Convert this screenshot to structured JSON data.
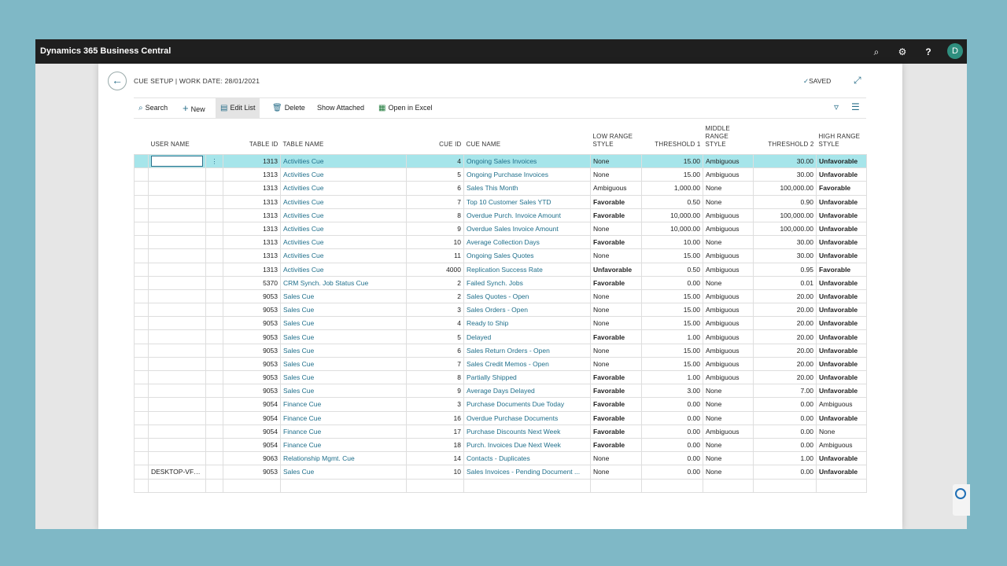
{
  "topbar": {
    "brand": "Dynamics 365 Business Central",
    "avatar_letter": "D"
  },
  "page": {
    "breadcrumb": "CUE SETUP | WORK DATE: 28/01/2021",
    "saved_label": "SAVED"
  },
  "actions": {
    "search": "Search",
    "new": "New",
    "edit_list": "Edit List",
    "delete": "Delete",
    "show_attached": "Show Attached",
    "open_excel": "Open in Excel"
  },
  "columns": {
    "user_name": "USER NAME",
    "table_id": "TABLE ID",
    "table_name": "TABLE NAME",
    "cue_id": "CUE ID",
    "cue_name": "CUE NAME",
    "low_style": "LOW RANGE STYLE",
    "threshold1": "THRESHOLD 1",
    "middle_style": "MIDDLE RANGE STYLE",
    "threshold2": "THRESHOLD 2",
    "high_style": "HIGH RANGE STYLE"
  },
  "rows": [
    {
      "user": "",
      "table_id": "1313",
      "table_name": "Activities Cue",
      "cue_id": "4",
      "cue_name": "Ongoing Sales Invoices",
      "low": "None",
      "t1": "15.00",
      "mid": "Ambiguous",
      "t2": "30.00",
      "high": "Unfavorable"
    },
    {
      "user": "",
      "table_id": "1313",
      "table_name": "Activities Cue",
      "cue_id": "5",
      "cue_name": "Ongoing Purchase Invoices",
      "low": "None",
      "t1": "15.00",
      "mid": "Ambiguous",
      "t2": "30.00",
      "high": "Unfavorable"
    },
    {
      "user": "",
      "table_id": "1313",
      "table_name": "Activities Cue",
      "cue_id": "6",
      "cue_name": "Sales This Month",
      "low": "Ambiguous",
      "t1": "1,000.00",
      "mid": "None",
      "t2": "100,000.00",
      "high": "Favorable"
    },
    {
      "user": "",
      "table_id": "1313",
      "table_name": "Activities Cue",
      "cue_id": "7",
      "cue_name": "Top 10 Customer Sales YTD",
      "low": "Favorable",
      "t1": "0.50",
      "mid": "None",
      "t2": "0.90",
      "high": "Unfavorable"
    },
    {
      "user": "",
      "table_id": "1313",
      "table_name": "Activities Cue",
      "cue_id": "8",
      "cue_name": "Overdue Purch. Invoice Amount",
      "low": "Favorable",
      "t1": "10,000.00",
      "mid": "Ambiguous",
      "t2": "100,000.00",
      "high": "Unfavorable"
    },
    {
      "user": "",
      "table_id": "1313",
      "table_name": "Activities Cue",
      "cue_id": "9",
      "cue_name": "Overdue Sales Invoice Amount",
      "low": "None",
      "t1": "10,000.00",
      "mid": "Ambiguous",
      "t2": "100,000.00",
      "high": "Unfavorable"
    },
    {
      "user": "",
      "table_id": "1313",
      "table_name": "Activities Cue",
      "cue_id": "10",
      "cue_name": "Average Collection Days",
      "low": "Favorable",
      "t1": "10.00",
      "mid": "None",
      "t2": "30.00",
      "high": "Unfavorable"
    },
    {
      "user": "",
      "table_id": "1313",
      "table_name": "Activities Cue",
      "cue_id": "11",
      "cue_name": "Ongoing Sales Quotes",
      "low": "None",
      "t1": "15.00",
      "mid": "Ambiguous",
      "t2": "30.00",
      "high": "Unfavorable"
    },
    {
      "user": "",
      "table_id": "1313",
      "table_name": "Activities Cue",
      "cue_id": "4000",
      "cue_name": "Replication Success Rate",
      "low": "Unfavorable",
      "t1": "0.50",
      "mid": "Ambiguous",
      "t2": "0.95",
      "high": "Favorable"
    },
    {
      "user": "",
      "table_id": "5370",
      "table_name": "CRM Synch. Job Status Cue",
      "cue_id": "2",
      "cue_name": "Failed Synch. Jobs",
      "low": "Favorable",
      "t1": "0.00",
      "mid": "None",
      "t2": "0.01",
      "high": "Unfavorable"
    },
    {
      "user": "",
      "table_id": "9053",
      "table_name": "Sales Cue",
      "cue_id": "2",
      "cue_name": "Sales Quotes - Open",
      "low": "None",
      "t1": "15.00",
      "mid": "Ambiguous",
      "t2": "20.00",
      "high": "Unfavorable"
    },
    {
      "user": "",
      "table_id": "9053",
      "table_name": "Sales Cue",
      "cue_id": "3",
      "cue_name": "Sales Orders - Open",
      "low": "None",
      "t1": "15.00",
      "mid": "Ambiguous",
      "t2": "20.00",
      "high": "Unfavorable"
    },
    {
      "user": "",
      "table_id": "9053",
      "table_name": "Sales Cue",
      "cue_id": "4",
      "cue_name": "Ready to Ship",
      "low": "None",
      "t1": "15.00",
      "mid": "Ambiguous",
      "t2": "20.00",
      "high": "Unfavorable"
    },
    {
      "user": "",
      "table_id": "9053",
      "table_name": "Sales Cue",
      "cue_id": "5",
      "cue_name": "Delayed",
      "low": "Favorable",
      "t1": "1.00",
      "mid": "Ambiguous",
      "t2": "20.00",
      "high": "Unfavorable"
    },
    {
      "user": "",
      "table_id": "9053",
      "table_name": "Sales Cue",
      "cue_id": "6",
      "cue_name": "Sales Return Orders - Open",
      "low": "None",
      "t1": "15.00",
      "mid": "Ambiguous",
      "t2": "20.00",
      "high": "Unfavorable"
    },
    {
      "user": "",
      "table_id": "9053",
      "table_name": "Sales Cue",
      "cue_id": "7",
      "cue_name": "Sales Credit Memos - Open",
      "low": "None",
      "t1": "15.00",
      "mid": "Ambiguous",
      "t2": "20.00",
      "high": "Unfavorable"
    },
    {
      "user": "",
      "table_id": "9053",
      "table_name": "Sales Cue",
      "cue_id": "8",
      "cue_name": "Partially Shipped",
      "low": "Favorable",
      "t1": "1.00",
      "mid": "Ambiguous",
      "t2": "20.00",
      "high": "Unfavorable"
    },
    {
      "user": "",
      "table_id": "9053",
      "table_name": "Sales Cue",
      "cue_id": "9",
      "cue_name": "Average Days Delayed",
      "low": "Favorable",
      "t1": "3.00",
      "mid": "None",
      "t2": "7.00",
      "high": "Unfavorable"
    },
    {
      "user": "",
      "table_id": "9054",
      "table_name": "Finance Cue",
      "cue_id": "3",
      "cue_name": "Purchase Documents Due Today",
      "low": "Favorable",
      "t1": "0.00",
      "mid": "None",
      "t2": "0.00",
      "high": "Ambiguous"
    },
    {
      "user": "",
      "table_id": "9054",
      "table_name": "Finance Cue",
      "cue_id": "16",
      "cue_name": "Overdue Purchase Documents",
      "low": "Favorable",
      "t1": "0.00",
      "mid": "None",
      "t2": "0.00",
      "high": "Unfavorable"
    },
    {
      "user": "",
      "table_id": "9054",
      "table_name": "Finance Cue",
      "cue_id": "17",
      "cue_name": "Purchase Discounts Next Week",
      "low": "Favorable",
      "t1": "0.00",
      "mid": "Ambiguous",
      "t2": "0.00",
      "high": "None"
    },
    {
      "user": "",
      "table_id": "9054",
      "table_name": "Finance Cue",
      "cue_id": "18",
      "cue_name": "Purch. Invoices Due Next Week",
      "low": "Favorable",
      "t1": "0.00",
      "mid": "None",
      "t2": "0.00",
      "high": "Ambiguous"
    },
    {
      "user": "",
      "table_id": "9063",
      "table_name": "Relationship Mgmt. Cue",
      "cue_id": "14",
      "cue_name": "Contacts - Duplicates",
      "low": "None",
      "t1": "0.00",
      "mid": "None",
      "t2": "1.00",
      "high": "Unfavorable"
    },
    {
      "user": "DESKTOP-VFO...",
      "table_id": "9053",
      "table_name": "Sales Cue",
      "cue_id": "10",
      "cue_name": "Sales Invoices - Pending Document ...",
      "low": "None",
      "t1": "0.00",
      "mid": "None",
      "t2": "0.00",
      "high": "Unfavorable"
    }
  ]
}
